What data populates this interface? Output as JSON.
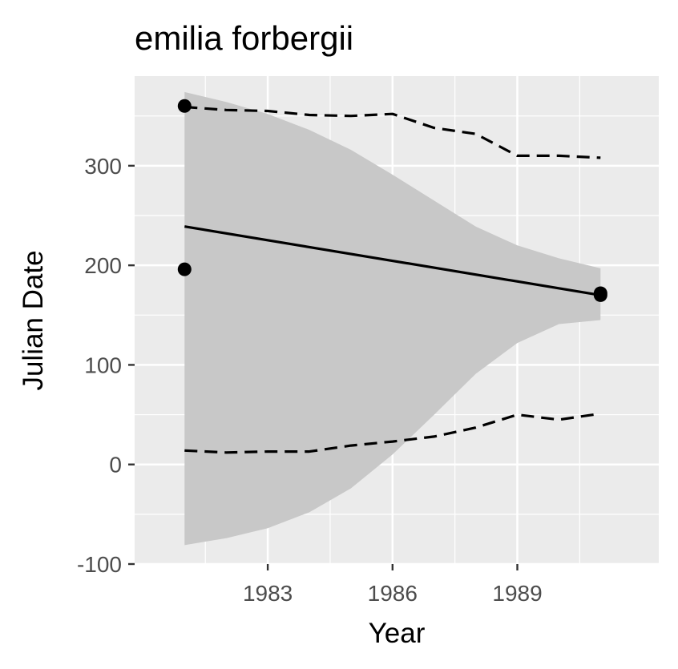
{
  "chart_data": {
    "type": "line",
    "title": "emilia forbergii",
    "xlabel": "Year",
    "ylabel": "Julian Date",
    "xlim": [
      1979.8,
      1992.4
    ],
    "ylim": [
      -100,
      390
    ],
    "x_ticks": [
      1983,
      1986,
      1989
    ],
    "x_minor_ticks": [
      1981.5,
      1984.5,
      1987.5,
      1990.5
    ],
    "y_ticks": [
      -100,
      0,
      100,
      200,
      300
    ],
    "y_minor_ticks": [
      -50,
      50,
      150,
      250,
      350
    ],
    "grid": true,
    "points": [
      {
        "x": 1981,
        "y": 360
      },
      {
        "x": 1981,
        "y": 196
      },
      {
        "x": 1991,
        "y": 172
      },
      {
        "x": 1991,
        "y": 170
      }
    ],
    "series": [
      {
        "style": "solid",
        "x": [
          1981,
          1991
        ],
        "y": [
          239,
          170
        ]
      },
      {
        "style": "dashed",
        "x": [
          1981,
          1982,
          1983,
          1984,
          1985,
          1986,
          1987,
          1988,
          1989,
          1990,
          1991
        ],
        "y": [
          359,
          356,
          355,
          351,
          350,
          352,
          338,
          332,
          310,
          310,
          308
        ]
      },
      {
        "style": "dashed",
        "x": [
          1981,
          1982,
          1983,
          1984,
          1985,
          1986,
          1987,
          1988,
          1989,
          1990,
          1991
        ],
        "y": [
          14,
          12,
          13,
          13,
          19,
          23,
          28,
          37,
          50,
          45,
          51
        ]
      }
    ],
    "band": {
      "x": [
        1981,
        1982,
        1983,
        1984,
        1985,
        1986,
        1987,
        1988,
        1989,
        1990,
        1991
      ],
      "upper": [
        374,
        364,
        352,
        336,
        316,
        291,
        265,
        239,
        220,
        207,
        197
      ],
      "lower": [
        -81,
        -74,
        -64,
        -48,
        -24,
        10,
        50,
        91,
        122,
        141,
        145
      ]
    },
    "colors": {
      "panel_background": "#ebebeb",
      "grid": "#ffffff",
      "band": "#c8c8c8",
      "line": "#000000",
      "tick_text": "#4d4d4d",
      "tick_mark": "#333333"
    }
  }
}
